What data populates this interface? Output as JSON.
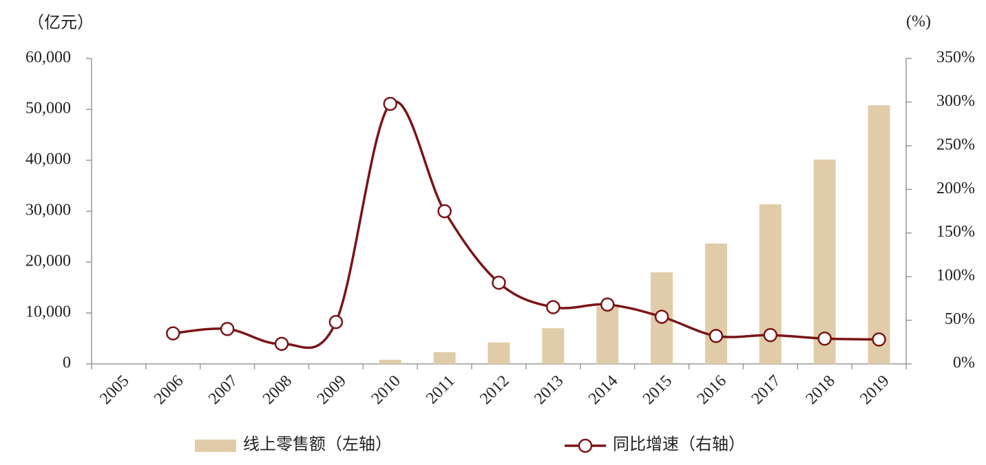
{
  "chart_data": {
    "type": "bar-line",
    "y_label": "（亿元）",
    "y2_label": "(%)",
    "categories": [
      "2005",
      "2006",
      "2007",
      "2008",
      "2009",
      "2010",
      "2011",
      "2012",
      "2013",
      "2014",
      "2015",
      "2016",
      "2017",
      "2018",
      "2019"
    ],
    "series": [
      {
        "name": "线上零售额（左轴）",
        "type": "bar",
        "color": "#e0cca8",
        "values": [
          null,
          null,
          null,
          null,
          null,
          800,
          2300,
          4200,
          7000,
          11300,
          18000,
          23650,
          31350,
          40150,
          50800
        ]
      },
      {
        "name": "同比增速（右轴）",
        "type": "line",
        "axis": "y2",
        "color": "#7a1417",
        "values": [
          null,
          35,
          40,
          23,
          48,
          298,
          175,
          93,
          65,
          68,
          54,
          32,
          33,
          29,
          28
        ]
      }
    ],
    "ylim": [
      0,
      60000
    ],
    "yticks": [
      0,
      {
        "value": 10000,
        "label": "10,000"
      },
      {
        "value": 20000,
        "label": "20,000"
      },
      {
        "value": 30000,
        "label": "30,000"
      },
      {
        "value": 40000,
        "label": "40,000"
      },
      {
        "value": 50000,
        "label": "50,000"
      },
      {
        "value": 60000,
        "label": "60,000"
      }
    ],
    "y2lim": [
      0,
      350
    ],
    "y2ticks": [
      {
        "value": 0,
        "label": "0%"
      },
      {
        "value": 50,
        "label": "50%"
      },
      {
        "value": 100,
        "label": "100%"
      },
      {
        "value": 150,
        "label": "150%"
      },
      {
        "value": 200,
        "label": "200%"
      },
      {
        "value": 250,
        "label": "250%"
      },
      {
        "value": 300,
        "label": "300%"
      },
      {
        "value": 350,
        "label": "350%"
      }
    ],
    "legend": "bottom"
  }
}
